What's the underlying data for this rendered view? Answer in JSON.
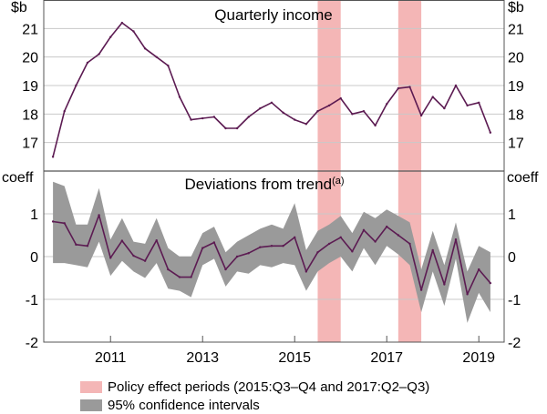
{
  "colors": {
    "line": "#5c1b52",
    "band": "#9a9a9a",
    "policy": "#f4b6b6",
    "grid": "#c8c8c8",
    "frame": "#555555"
  },
  "chart_data": [
    {
      "type": "line",
      "title": "Quarterly income",
      "ylabel_left": "$b",
      "ylabel_right": "$b",
      "ylim": [
        16,
        22
      ],
      "yticks": [
        17,
        18,
        19,
        20,
        21
      ],
      "ytick_labels": [
        "17",
        "18",
        "19",
        "20",
        "21"
      ],
      "series": [
        {
          "name": "Quarterly income",
          "x": [
            2009.75,
            2010.0,
            2010.25,
            2010.5,
            2010.75,
            2011.0,
            2011.25,
            2011.5,
            2011.75,
            2012.0,
            2012.25,
            2012.5,
            2012.75,
            2013.0,
            2013.25,
            2013.5,
            2013.75,
            2014.0,
            2014.25,
            2014.5,
            2014.75,
            2015.0,
            2015.25,
            2015.5,
            2015.75,
            2016.0,
            2016.25,
            2016.5,
            2016.75,
            2017.0,
            2017.25,
            2017.5,
            2017.75,
            2018.0,
            2018.25,
            2018.5,
            2018.75,
            2019.0,
            2019.25
          ],
          "values": [
            16.5,
            18.1,
            19.0,
            19.8,
            20.1,
            20.7,
            21.2,
            20.9,
            20.3,
            20.0,
            19.7,
            18.6,
            17.8,
            17.85,
            17.9,
            17.5,
            17.5,
            17.9,
            18.2,
            18.4,
            18.05,
            17.8,
            17.65,
            18.1,
            18.3,
            18.55,
            18.0,
            18.1,
            17.6,
            18.35,
            18.9,
            18.95,
            17.95,
            18.6,
            18.2,
            19.0,
            18.3,
            18.4,
            17.35
          ]
        }
      ]
    },
    {
      "type": "line",
      "title": "Deviations from trend",
      "title_superscript": "(a)",
      "ylabel_left": "coeff",
      "ylabel_right": "coeff",
      "ylim": [
        -2,
        2
      ],
      "yticks": [
        -2,
        -1,
        0,
        1
      ],
      "ytick_labels": [
        "-2",
        "-1",
        "0",
        "1"
      ],
      "series": [
        {
          "name": "Deviations from trend",
          "x": [
            2009.75,
            2010.0,
            2010.25,
            2010.5,
            2010.75,
            2011.0,
            2011.25,
            2011.5,
            2011.75,
            2012.0,
            2012.25,
            2012.5,
            2012.75,
            2013.0,
            2013.25,
            2013.5,
            2013.75,
            2014.0,
            2014.25,
            2014.5,
            2014.75,
            2015.0,
            2015.25,
            2015.5,
            2015.75,
            2016.0,
            2016.25,
            2016.5,
            2016.75,
            2017.0,
            2017.25,
            2017.5,
            2017.75,
            2018.0,
            2018.25,
            2018.5,
            2018.75,
            2019.0,
            2019.25
          ],
          "values": [
            0.82,
            0.78,
            0.28,
            0.25,
            0.97,
            -0.03,
            0.37,
            0.02,
            -0.1,
            0.38,
            -0.3,
            -0.48,
            -0.48,
            0.2,
            0.33,
            -0.3,
            0.0,
            0.08,
            0.22,
            0.25,
            0.25,
            0.45,
            -0.35,
            0.1,
            0.3,
            0.45,
            0.12,
            0.62,
            0.35,
            0.7,
            0.5,
            0.3,
            -0.78,
            0.15,
            -0.65,
            0.4,
            -0.88,
            -0.3,
            -0.62
          ],
          "ci_upper": [
            1.75,
            1.65,
            0.75,
            0.75,
            1.6,
            0.4,
            0.9,
            0.35,
            0.3,
            0.9,
            0.2,
            0.0,
            0.0,
            0.55,
            0.7,
            0.1,
            0.35,
            0.5,
            0.65,
            0.75,
            0.65,
            1.25,
            0.15,
            0.6,
            0.75,
            0.95,
            0.55,
            1.05,
            0.9,
            1.1,
            0.95,
            0.8,
            -0.3,
            0.6,
            -0.2,
            0.8,
            -0.35,
            0.25,
            0.1
          ],
          "ci_lower": [
            -0.15,
            -0.15,
            -0.2,
            -0.25,
            0.35,
            -0.45,
            -0.1,
            -0.35,
            -0.5,
            -0.15,
            -0.75,
            -0.8,
            -0.95,
            -0.2,
            -0.05,
            -0.7,
            -0.35,
            -0.4,
            -0.2,
            -0.25,
            -0.15,
            -0.2,
            -0.8,
            -0.35,
            -0.15,
            0.0,
            -0.35,
            0.2,
            -0.2,
            0.25,
            0.05,
            -0.2,
            -1.3,
            -0.35,
            -1.15,
            -0.05,
            -1.55,
            -0.85,
            -1.3
          ]
        }
      ]
    }
  ],
  "x_axis": {
    "xlim": [
      2009.55,
      2019.55
    ],
    "tick_values": [
      2011,
      2013,
      2015,
      2017,
      2019
    ],
    "tick_labels": [
      "2011",
      "2013",
      "2015",
      "2017",
      "2019"
    ]
  },
  "policy_periods": [
    {
      "start": 2015.5,
      "end": 2016.0
    },
    {
      "start": 2017.25,
      "end": 2017.75
    }
  ],
  "legend": {
    "policy_label": "Policy effect periods (2015:Q3–Q4 and 2017:Q2–Q3)",
    "ci_label": "95% confidence intervals"
  }
}
